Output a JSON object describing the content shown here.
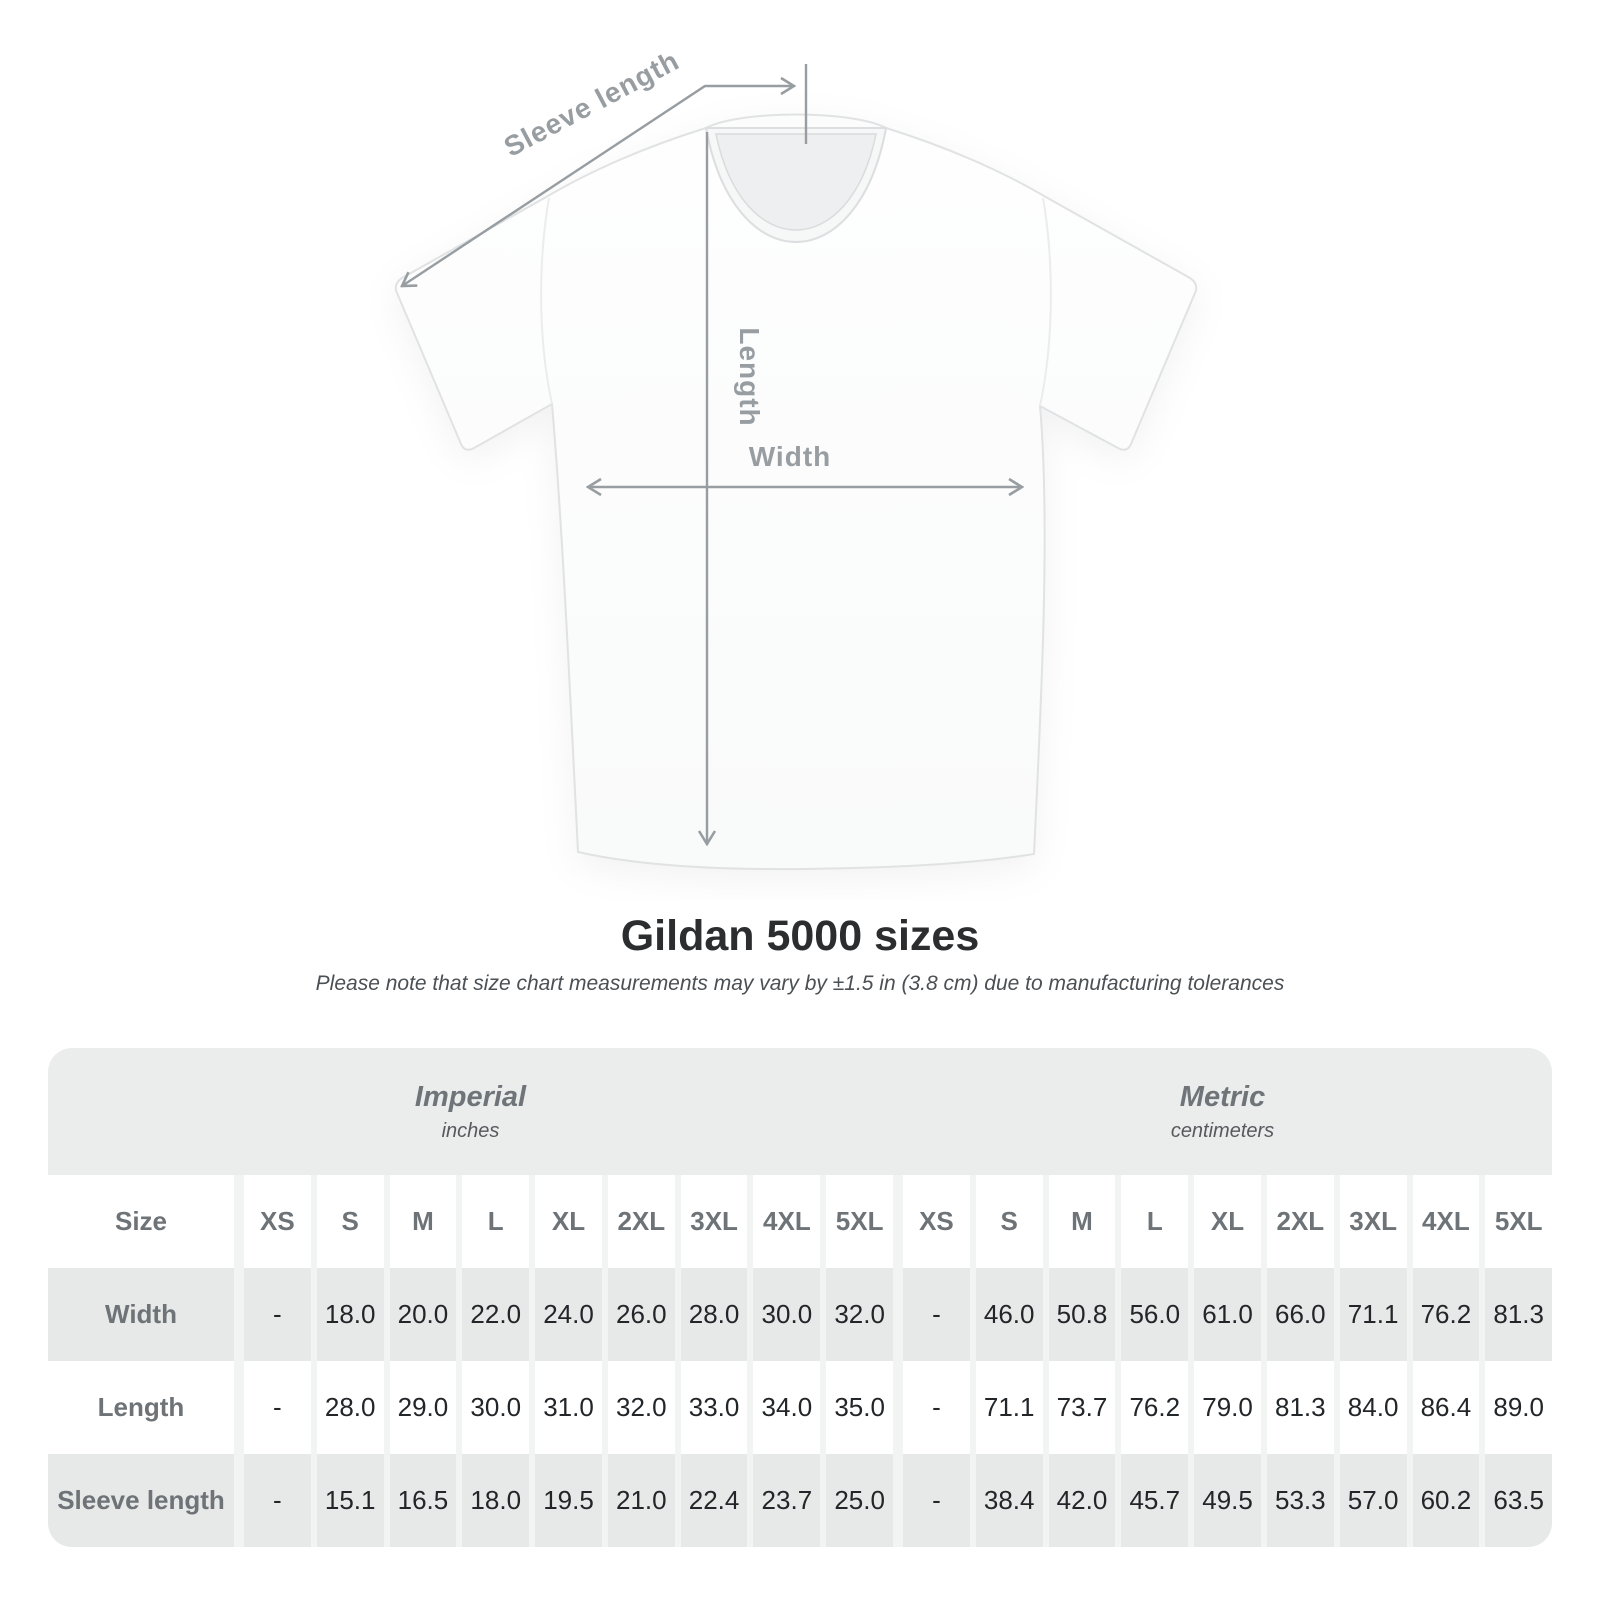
{
  "diagram": {
    "sleeve_length_label": "Sleeve length",
    "length_label": "Length",
    "width_label": "Width",
    "arrow_color": "#979da1",
    "label_color": "#979da1",
    "shirt_color": "#fdfdfd"
  },
  "title": "Gildan 5000 sizes",
  "subtitle": "Please note that size chart measurements may vary by ±1.5 in (3.8 cm) due to manufacturing tolerances",
  "table": {
    "imperial": {
      "title": "Imperial",
      "unit": "inches"
    },
    "metric": {
      "title": "Metric",
      "unit": "centimeters"
    },
    "size_header": "Size",
    "sizes": [
      "XS",
      "S",
      "M",
      "L",
      "XL",
      "2XL",
      "3XL",
      "4XL",
      "5XL"
    ],
    "rows": [
      {
        "label": "Width",
        "imperial": [
          "-",
          "18.0",
          "20.0",
          "22.0",
          "24.0",
          "26.0",
          "28.0",
          "30.0",
          "32.0"
        ],
        "metric": [
          "-",
          "46.0",
          "50.8",
          "56.0",
          "61.0",
          "66.0",
          "71.1",
          "76.2",
          "81.3"
        ]
      },
      {
        "label": "Length",
        "imperial": [
          "-",
          "28.0",
          "29.0",
          "30.0",
          "31.0",
          "32.0",
          "33.0",
          "34.0",
          "35.0"
        ],
        "metric": [
          "-",
          "71.1",
          "73.7",
          "76.2",
          "79.0",
          "81.3",
          "84.0",
          "86.4",
          "89.0"
        ]
      },
      {
        "label": "Sleeve length",
        "imperial": [
          "-",
          "15.1",
          "16.5",
          "18.0",
          "19.5",
          "21.0",
          "22.4",
          "23.7",
          "25.0"
        ],
        "metric": [
          "-",
          "38.4",
          "42.0",
          "45.7",
          "49.5",
          "53.3",
          "57.0",
          "60.2",
          "63.5"
        ]
      }
    ],
    "colors": {
      "container_bg": "#ebecec",
      "gray_row_bg": "#e7e8e8",
      "white_row_bg": "#ffffff",
      "header_text": "#6e7377",
      "value_text": "#232629"
    }
  }
}
